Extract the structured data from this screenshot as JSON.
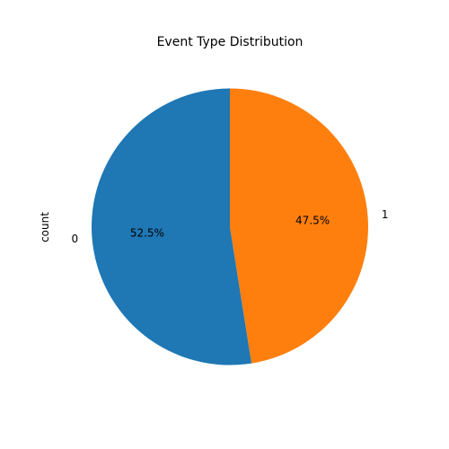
{
  "chart_data": {
    "type": "pie",
    "title": "Event Type Distribution",
    "ylabel": "count",
    "labels": [
      "0",
      "1"
    ],
    "values": [
      52.5,
      47.5
    ],
    "percent_labels": [
      "52.5%",
      "47.5%"
    ],
    "colors": [
      "#1f77b4",
      "#ff7f0e"
    ],
    "start_angle_deg": 90,
    "direction": "counterclockwise"
  }
}
